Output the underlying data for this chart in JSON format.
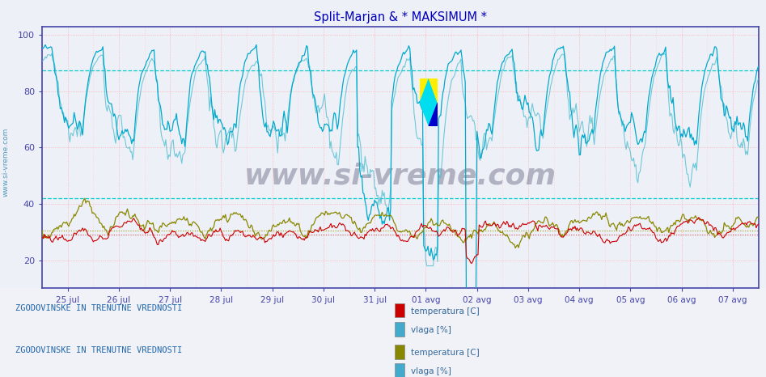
{
  "title": "Split-Marjan & * MAKSIMUM *",
  "title_color": "#0000cc",
  "bg_color": "#eef0f8",
  "plot_bg_color": "#eef0f8",
  "xmin": 0,
  "xmax": 672,
  "ymin": 10,
  "ymax": 103,
  "yticks": [
    20,
    40,
    60,
    80,
    100
  ],
  "hline_cyan_vals": [
    42.0,
    87.5
  ],
  "hline_red_vals": [
    29.0
  ],
  "hline_olive_vals": [
    30.5
  ],
  "x_tick_labels": [
    "25 jul",
    "26 jul",
    "27 jul",
    "28 jul",
    "29 jul",
    "30 jul",
    "31 jul",
    "01 avg",
    "02 avg",
    "03 avg",
    "04 avg",
    "05 avg",
    "06 avg",
    "07 avg"
  ],
  "x_tick_positions": [
    24,
    72,
    120,
    168,
    216,
    264,
    312,
    360,
    408,
    456,
    504,
    552,
    600,
    648
  ],
  "color_red": "#cc0000",
  "color_cyan_main": "#00aacc",
  "color_cyan_light": "#44bbcc",
  "color_olive": "#888800",
  "watermark_text": "www.si-vreme.com",
  "legend1_label1": "temperatura [C]",
  "legend1_label2": "vlaga [%]",
  "legend2_label1": "temperatura [C]",
  "legend2_label2": "vlaga [%]",
  "section1_text": "ZGODOVINSKE IN TRENUTNE VREDNOSTI",
  "section2_text": "ZGODOVINSKE IN TRENUTNE VREDNOSTI",
  "axis_left_label": "www.si-vreme.com",
  "n_points": 673
}
